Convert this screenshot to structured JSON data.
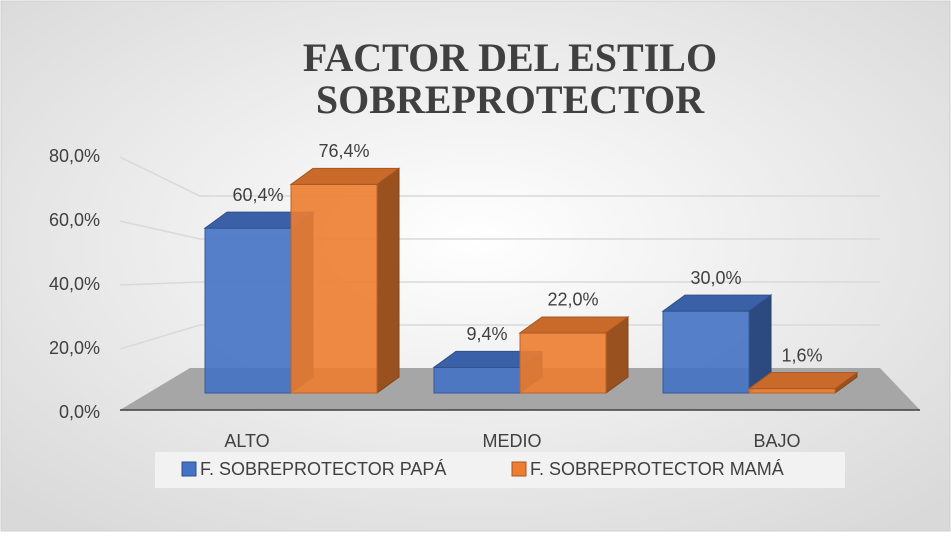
{
  "chart_data": {
    "type": "bar3d",
    "title": "FACTOR DEL ESTILO SOBREPROTECTOR",
    "categories": [
      "ALTO",
      "MEDIO",
      "BAJO"
    ],
    "series": [
      {
        "name": "F. SOBREPROTECTOR PAPÁ",
        "color": "#4472c4",
        "values": [
          60.4,
          9.4,
          30.0
        ],
        "value_labels": [
          "60,4%",
          "9,4%",
          "30,0%"
        ]
      },
      {
        "name": "F. SOBREPROTECTOR MAMÁ",
        "color": "#ed7d31",
        "values": [
          76.4,
          22.0,
          1.6
        ],
        "value_labels": [
          "76,4%",
          "22,0%",
          "1,6%"
        ]
      }
    ],
    "ylim": [
      0,
      80
    ],
    "yticks": [
      {
        "value": 0,
        "label": "0,0%"
      },
      {
        "value": 20,
        "label": "20,0%"
      },
      {
        "value": 40,
        "label": "40,0%"
      },
      {
        "value": 60,
        "label": "60,0%"
      },
      {
        "value": 80,
        "label": "80,0%"
      }
    ],
    "grid": true,
    "legend": "bottom"
  }
}
